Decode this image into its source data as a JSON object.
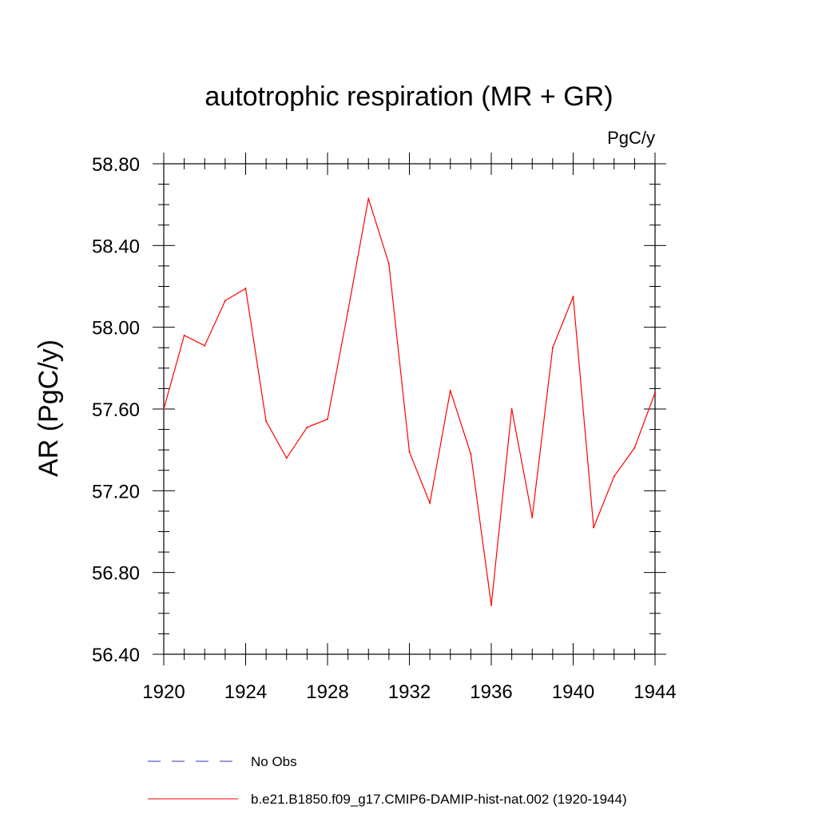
{
  "chart_data": {
    "type": "line",
    "title": "autotrophic respiration (MR + GR)",
    "units": "PgC/y",
    "xlabel": "",
    "ylabel": "AR  (PgC/y)",
    "xlim": [
      1920,
      1944
    ],
    "ylim": [
      56.4,
      58.8
    ],
    "x_ticks": [
      1920,
      1924,
      1928,
      1932,
      1936,
      1940,
      1944
    ],
    "x_tick_labels": [
      "1920",
      "1924",
      "1928",
      "1932",
      "1936",
      "1940",
      "1944"
    ],
    "y_ticks": [
      56.4,
      56.8,
      57.2,
      57.6,
      58.0,
      58.4,
      58.8
    ],
    "y_tick_labels": [
      "56.40",
      "56.80",
      "57.20",
      "57.60",
      "58.00",
      "58.40",
      "58.80"
    ],
    "grid": false,
    "legend_position": "bottom",
    "series": [
      {
        "name": "b.e21.B1850.f09_g17.CMIP6-DAMIP-hist-nat.002 (1920-1944)",
        "color": "#ff0000",
        "style": "solid",
        "x": [
          1920,
          1921,
          1922,
          1923,
          1924,
          1925,
          1926,
          1927,
          1928,
          1929,
          1930,
          1931,
          1932,
          1933,
          1934,
          1935,
          1936,
          1937,
          1938,
          1939,
          1940,
          1941,
          1942,
          1943,
          1944
        ],
        "y": [
          57.6,
          57.96,
          57.91,
          58.13,
          58.19,
          57.54,
          57.36,
          57.51,
          57.55,
          58.08,
          58.63,
          58.31,
          57.39,
          57.14,
          57.69,
          57.38,
          56.64,
          57.6,
          57.07,
          57.9,
          58.15,
          57.02,
          57.27,
          57.41,
          57.68
        ]
      }
    ],
    "legend": [
      {
        "label": "No Obs",
        "color": "#3333cc",
        "style": "dashed"
      },
      {
        "label": "b.e21.B1850.f09_g17.CMIP6-DAMIP-hist-nat.002 (1920-1944)",
        "color": "#ff0000",
        "style": "solid"
      }
    ]
  }
}
